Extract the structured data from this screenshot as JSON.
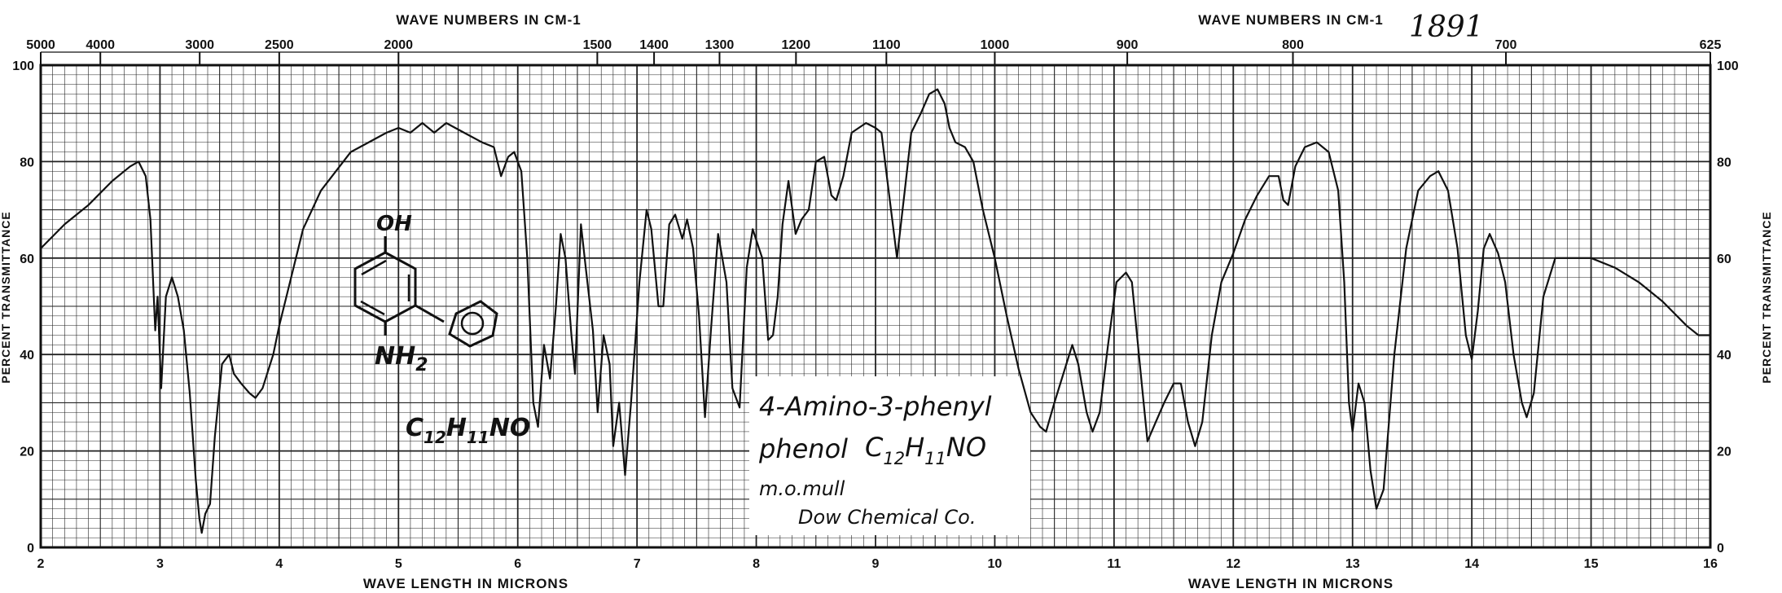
{
  "chart_data": {
    "type": "line",
    "x_unit": "microns",
    "xlim": [
      2,
      16
    ],
    "ylim": [
      0,
      100
    ],
    "bottom_axis_title_left": "WAVE LENGTH IN MICRONS",
    "bottom_axis_title_right": "WAVE LENGTH IN MICRONS",
    "top_axis_title_left": "WAVE NUMBERS IN CM-1",
    "top_axis_title_right": "WAVE NUMBERS IN CM-1",
    "ylabel_left": "PERCENT TRANSMITTANCE",
    "ylabel_right": "PERCENT TRANSMITTANCE",
    "x_ticks": [
      "2",
      "3",
      "4",
      "5",
      "6",
      "7",
      "8",
      "9",
      "10",
      "11",
      "12",
      "13",
      "14",
      "15",
      "16"
    ],
    "y_ticks": [
      "0",
      "20",
      "40",
      "60",
      "80",
      "100"
    ],
    "wavenumber_ticks": [
      {
        "label": "5000",
        "micron": 2.0
      },
      {
        "label": "4000",
        "micron": 2.5
      },
      {
        "label": "3000",
        "micron": 3.333
      },
      {
        "label": "2500",
        "micron": 4.0
      },
      {
        "label": "2000",
        "micron": 5.0
      },
      {
        "label": "1500",
        "micron": 6.667
      },
      {
        "label": "1400",
        "micron": 7.143
      },
      {
        "label": "1300",
        "micron": 7.692
      },
      {
        "label": "1200",
        "micron": 8.333
      },
      {
        "label": "1100",
        "micron": 9.091
      },
      {
        "label": "1000",
        "micron": 10.0
      },
      {
        "label": "900",
        "micron": 11.111
      },
      {
        "label": "800",
        "micron": 12.5
      },
      {
        "label": "700",
        "micron": 14.286
      },
      {
        "label": "625",
        "micron": 16.0
      }
    ],
    "spectrum_name": "Spectrum",
    "spectrum": [
      [
        2.0,
        62
      ],
      [
        2.2,
        67
      ],
      [
        2.4,
        71
      ],
      [
        2.6,
        76
      ],
      [
        2.75,
        79
      ],
      [
        2.82,
        80
      ],
      [
        2.88,
        77
      ],
      [
        2.92,
        68
      ],
      [
        2.96,
        45
      ],
      [
        2.98,
        52
      ],
      [
        3.01,
        33
      ],
      [
        3.05,
        52
      ],
      [
        3.1,
        56
      ],
      [
        3.15,
        52
      ],
      [
        3.2,
        45
      ],
      [
        3.25,
        32
      ],
      [
        3.3,
        14
      ],
      [
        3.33,
        6
      ],
      [
        3.35,
        3
      ],
      [
        3.38,
        7
      ],
      [
        3.42,
        9
      ],
      [
        3.46,
        23
      ],
      [
        3.52,
        38
      ],
      [
        3.58,
        40
      ],
      [
        3.62,
        36
      ],
      [
        3.68,
        34
      ],
      [
        3.75,
        32
      ],
      [
        3.8,
        31
      ],
      [
        3.86,
        33
      ],
      [
        3.95,
        40
      ],
      [
        4.0,
        46
      ],
      [
        4.1,
        56
      ],
      [
        4.2,
        66
      ],
      [
        4.35,
        74
      ],
      [
        4.6,
        82
      ],
      [
        4.9,
        86
      ],
      [
        5.0,
        87
      ],
      [
        5.1,
        86
      ],
      [
        5.2,
        88
      ],
      [
        5.3,
        86
      ],
      [
        5.4,
        88
      ],
      [
        5.55,
        86
      ],
      [
        5.7,
        84
      ],
      [
        5.8,
        83
      ],
      [
        5.86,
        77
      ],
      [
        5.92,
        81
      ],
      [
        5.97,
        82
      ],
      [
        6.03,
        78
      ],
      [
        6.08,
        60
      ],
      [
        6.13,
        30
      ],
      [
        6.17,
        25
      ],
      [
        6.22,
        42
      ],
      [
        6.27,
        35
      ],
      [
        6.32,
        50
      ],
      [
        6.36,
        65
      ],
      [
        6.4,
        60
      ],
      [
        6.45,
        44
      ],
      [
        6.48,
        36
      ],
      [
        6.53,
        67
      ],
      [
        6.57,
        58
      ],
      [
        6.63,
        45
      ],
      [
        6.67,
        28
      ],
      [
        6.72,
        44
      ],
      [
        6.77,
        38
      ],
      [
        6.8,
        21
      ],
      [
        6.85,
        30
      ],
      [
        6.9,
        15
      ],
      [
        6.95,
        30
      ],
      [
        7.02,
        55
      ],
      [
        7.08,
        70
      ],
      [
        7.12,
        66
      ],
      [
        7.18,
        50
      ],
      [
        7.22,
        50
      ],
      [
        7.27,
        67
      ],
      [
        7.32,
        69
      ],
      [
        7.38,
        64
      ],
      [
        7.42,
        68
      ],
      [
        7.47,
        62
      ],
      [
        7.52,
        48
      ],
      [
        7.57,
        27
      ],
      [
        7.62,
        45
      ],
      [
        7.68,
        65
      ],
      [
        7.75,
        55
      ],
      [
        7.8,
        33
      ],
      [
        7.86,
        29
      ],
      [
        7.92,
        58
      ],
      [
        7.97,
        66
      ],
      [
        8.01,
        63
      ],
      [
        8.05,
        60
      ],
      [
        8.1,
        43
      ],
      [
        8.14,
        44
      ],
      [
        8.18,
        52
      ],
      [
        8.22,
        67
      ],
      [
        8.27,
        76
      ],
      [
        8.33,
        65
      ],
      [
        8.38,
        68
      ],
      [
        8.44,
        70
      ],
      [
        8.5,
        80
      ],
      [
        8.57,
        81
      ],
      [
        8.63,
        73
      ],
      [
        8.67,
        72
      ],
      [
        8.73,
        77
      ],
      [
        8.8,
        86
      ],
      [
        8.92,
        88
      ],
      [
        9.0,
        87
      ],
      [
        9.05,
        86
      ],
      [
        9.1,
        76
      ],
      [
        9.18,
        60
      ],
      [
        9.25,
        75
      ],
      [
        9.3,
        86
      ],
      [
        9.38,
        90
      ],
      [
        9.45,
        94
      ],
      [
        9.52,
        95
      ],
      [
        9.58,
        92
      ],
      [
        9.62,
        87
      ],
      [
        9.67,
        84
      ],
      [
        9.75,
        83
      ],
      [
        9.82,
        80
      ],
      [
        9.9,
        70
      ],
      [
        10.0,
        60
      ],
      [
        10.1,
        48
      ],
      [
        10.2,
        37
      ],
      [
        10.3,
        28
      ],
      [
        10.38,
        25
      ],
      [
        10.43,
        24
      ],
      [
        10.5,
        30
      ],
      [
        10.6,
        38
      ],
      [
        10.65,
        42
      ],
      [
        10.7,
        38
      ],
      [
        10.77,
        28
      ],
      [
        10.82,
        24
      ],
      [
        10.88,
        28
      ],
      [
        10.95,
        42
      ],
      [
        11.02,
        55
      ],
      [
        11.1,
        57
      ],
      [
        11.15,
        55
      ],
      [
        11.22,
        37
      ],
      [
        11.28,
        22
      ],
      [
        11.35,
        26
      ],
      [
        11.42,
        30
      ],
      [
        11.5,
        34
      ],
      [
        11.56,
        34
      ],
      [
        11.62,
        26
      ],
      [
        11.68,
        21
      ],
      [
        11.74,
        26
      ],
      [
        11.82,
        44
      ],
      [
        11.9,
        55
      ],
      [
        12.0,
        61
      ],
      [
        12.1,
        68
      ],
      [
        12.2,
        73
      ],
      [
        12.3,
        77
      ],
      [
        12.38,
        77
      ],
      [
        12.42,
        72
      ],
      [
        12.46,
        71
      ],
      [
        12.52,
        79
      ],
      [
        12.6,
        83
      ],
      [
        12.7,
        84
      ],
      [
        12.8,
        82
      ],
      [
        12.88,
        74
      ],
      [
        12.93,
        55
      ],
      [
        12.97,
        30
      ],
      [
        13.0,
        24
      ],
      [
        13.05,
        34
      ],
      [
        13.1,
        30
      ],
      [
        13.15,
        16
      ],
      [
        13.2,
        8
      ],
      [
        13.26,
        12
      ],
      [
        13.35,
        40
      ],
      [
        13.45,
        62
      ],
      [
        13.55,
        74
      ],
      [
        13.65,
        77
      ],
      [
        13.72,
        78
      ],
      [
        13.8,
        74
      ],
      [
        13.88,
        62
      ],
      [
        13.95,
        44
      ],
      [
        14.0,
        39
      ],
      [
        14.05,
        49
      ],
      [
        14.1,
        62
      ],
      [
        14.15,
        65
      ],
      [
        14.22,
        61
      ],
      [
        14.28,
        55
      ],
      [
        14.35,
        40
      ],
      [
        14.42,
        30
      ],
      [
        14.46,
        27
      ],
      [
        14.52,
        32
      ],
      [
        14.6,
        52
      ],
      [
        14.7,
        60
      ],
      [
        14.8,
        60
      ],
      [
        15.0,
        60
      ],
      [
        15.2,
        58
      ],
      [
        15.4,
        55
      ],
      [
        15.6,
        51
      ],
      [
        15.8,
        46
      ],
      [
        15.9,
        44
      ],
      [
        16.0,
        44
      ]
    ]
  },
  "annotations": {
    "sample_number": "1891",
    "compound_name_line1": "4-Amino-3-phenyl",
    "compound_name_line2": "phenol",
    "formula_parts": [
      "C",
      "12",
      "H",
      "11",
      "NO"
    ],
    "medium": "m.o.mull",
    "source": "Dow Chemical Co.",
    "structure_oh": "OH",
    "structure_nh2": "NH",
    "structure_nh2_sub": "2",
    "structure_formula_parts": [
      "C",
      "12",
      "H",
      "11",
      "NO"
    ]
  }
}
